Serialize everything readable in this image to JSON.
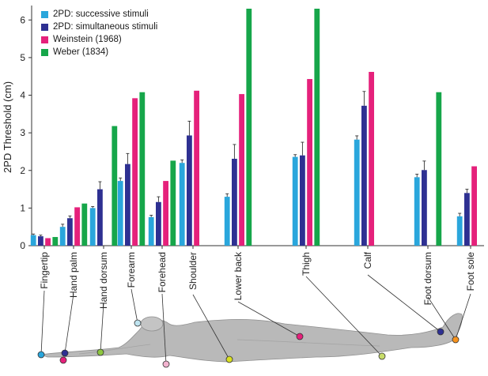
{
  "chart_data": {
    "type": "bar",
    "ylabel": "2PD Threshold (cm)",
    "xlabel": "",
    "ylim": [
      0,
      6.3
    ],
    "yticks": [
      0,
      1,
      2,
      3,
      4,
      5,
      6
    ],
    "categories": [
      "Fingertip",
      "Hand palm",
      "Hand dorsum",
      "Forearm",
      "Forehead",
      "Shoulder",
      "Lower back",
      "Thigh",
      "Calf",
      "Foot dorsum",
      "Foot sole"
    ],
    "series": [
      {
        "name": "2PD: successive stimuli",
        "color": "#2aa6dc",
        "values": [
          0.28,
          0.5,
          1.0,
          1.72,
          0.76,
          2.2,
          1.3,
          2.36,
          2.82,
          1.82,
          0.78
        ],
        "errors": [
          0.03,
          0.07,
          0.04,
          0.08,
          0.05,
          0.08,
          0.08,
          0.06,
          0.1,
          0.08,
          0.08
        ]
      },
      {
        "name": "2PD: simultaneous stimuli",
        "color": "#2e3092",
        "values": [
          0.25,
          0.73,
          1.5,
          2.17,
          1.16,
          2.93,
          2.31,
          2.4,
          3.72,
          2.01,
          1.4
        ],
        "errors": [
          0.03,
          0.06,
          0.2,
          0.28,
          0.14,
          0.38,
          0.38,
          0.35,
          0.38,
          0.24,
          0.1
        ]
      },
      {
        "name": "Weinstein (1968)",
        "color": "#e5217b",
        "values": [
          0.2,
          1.02,
          null,
          3.92,
          1.72,
          4.12,
          4.03,
          4.43,
          4.62,
          null,
          2.11
        ],
        "errors": null
      },
      {
        "name": "Weber (1834)",
        "color": "#16a64a",
        "values": [
          0.23,
          1.12,
          3.18,
          4.08,
          2.26,
          null,
          6.3,
          6.3,
          null,
          4.08,
          null
        ],
        "errors": null
      }
    ],
    "legend_placement": "top-left",
    "grid": false,
    "body_illustration": {
      "description_icon": "human-body-supine-icon",
      "marker_colors": {
        "Fingertip": "#2aa6dc",
        "Hand palm": "#2e3092",
        "Hand dorsum": "#8dc63f",
        "Forearm": "#b6d67a",
        "Forehead": "#bfe4f0",
        "Shoulder": "#f2b3cf",
        "Lower back": "#d9e021",
        "Thigh": "#e5217b",
        "Calf": "#c8dd6a",
        "Foot dorsum": "#2e3092",
        "Foot sole": "#f7931e"
      },
      "extra_marker_color": "#e5217b"
    }
  }
}
